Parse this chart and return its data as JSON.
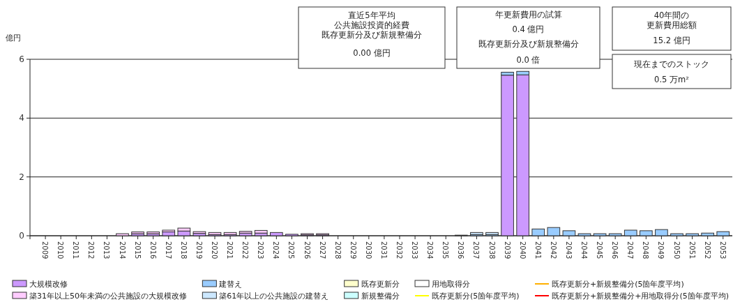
{
  "chart_data": {
    "type": "bar",
    "stacked": true,
    "ylabel": "億円",
    "categories": [
      "2009",
      "2010",
      "2011",
      "2012",
      "2013",
      "2014",
      "2015",
      "2016",
      "2017",
      "2018",
      "2019",
      "2020",
      "2021",
      "2022",
      "2023",
      "2024",
      "2025",
      "2026",
      "2027",
      "2028",
      "2029",
      "2030",
      "2031",
      "2032",
      "2033",
      "2034",
      "2035",
      "2036",
      "2037",
      "2038",
      "2039",
      "2040",
      "2041",
      "2042",
      "2043",
      "2044",
      "2045",
      "2046",
      "2047",
      "2048",
      "2049",
      "2050",
      "2051",
      "2052",
      "2053"
    ],
    "series": [
      {
        "name": "大規模改修",
        "color": "#cc99ff",
        "values": [
          0,
          0,
          0,
          0,
          0,
          0,
          0.07,
          0.07,
          0.13,
          0.16,
          0.08,
          0.04,
          0.04,
          0.09,
          0.09,
          0.11,
          0.05,
          0.03,
          0.03,
          0,
          0,
          0,
          0,
          0,
          0,
          0,
          0,
          0,
          0,
          0,
          5.46,
          5.47,
          0,
          0,
          0,
          0,
          0,
          0,
          0,
          0,
          0,
          0,
          0,
          0,
          0
        ]
      },
      {
        "name": "築31年以上50年未満の公共施設の大規模改修",
        "color": "#ffccff",
        "values": [
          0,
          0,
          0,
          0,
          0,
          0.07,
          0.06,
          0.06,
          0.06,
          0.1,
          0.06,
          0.07,
          0.07,
          0.06,
          0.09,
          0,
          0,
          0.04,
          0.04,
          0,
          0,
          0,
          0,
          0,
          0,
          0,
          0,
          0,
          0,
          0,
          0,
          0,
          0,
          0,
          0,
          0,
          0,
          0,
          0,
          0,
          0,
          0,
          0,
          0,
          0
        ]
      },
      {
        "name": "建替え",
        "color": "#99ccff",
        "values": [
          0,
          0,
          0,
          0,
          0,
          0,
          0,
          0,
          0,
          0,
          0,
          0,
          0,
          0,
          0,
          0,
          0,
          0,
          0,
          0,
          0,
          0,
          0,
          0,
          0,
          0,
          0,
          0.02,
          0.04,
          0.04,
          0.1,
          0.12,
          0.23,
          0.28,
          0.17,
          0.07,
          0.07,
          0.07,
          0.19,
          0.17,
          0.21,
          0.07,
          0.07,
          0.09,
          0.14
        ]
      },
      {
        "name": "築61年以上の公共施設の建替え",
        "color": "#cce8ff",
        "values": [
          0,
          0,
          0,
          0,
          0,
          0,
          0,
          0,
          0,
          0,
          0,
          0,
          0,
          0,
          0,
          0,
          0,
          0,
          0,
          0,
          0,
          0,
          0,
          0,
          0,
          0,
          0,
          0,
          0.07,
          0.07,
          0,
          0,
          0,
          0,
          0,
          0,
          0,
          0,
          0,
          0,
          0,
          0,
          0,
          0,
          0
        ]
      },
      {
        "name": "既存更新分",
        "color": "#ffffcc",
        "values": [
          0,
          0,
          0,
          0,
          0,
          0,
          0,
          0,
          0,
          0,
          0,
          0,
          0,
          0,
          0,
          0,
          0,
          0,
          0,
          0,
          0,
          0,
          0,
          0,
          0,
          0,
          0,
          0,
          0,
          0,
          0,
          0,
          0,
          0,
          0,
          0,
          0,
          0,
          0,
          0,
          0,
          0,
          0,
          0,
          0
        ]
      },
      {
        "name": "新規整備分",
        "color": "#ccffff",
        "values": [
          0,
          0,
          0,
          0,
          0,
          0,
          0,
          0,
          0,
          0,
          0,
          0,
          0,
          0,
          0,
          0,
          0,
          0,
          0,
          0,
          0,
          0,
          0,
          0,
          0,
          0,
          0,
          0,
          0,
          0,
          0,
          0,
          0,
          0,
          0,
          0,
          0,
          0,
          0,
          0,
          0,
          0,
          0,
          0,
          0
        ]
      },
      {
        "name": "用地取得分",
        "color": "#ffffff",
        "values": [
          0,
          0,
          0,
          0,
          0,
          0,
          0,
          0,
          0,
          0,
          0,
          0,
          0,
          0,
          0,
          0,
          0,
          0,
          0,
          0,
          0,
          0,
          0,
          0,
          0,
          0,
          0,
          0,
          0,
          0,
          0,
          0,
          0,
          0,
          0,
          0,
          0,
          0,
          0,
          0,
          0,
          0,
          0,
          0,
          0
        ]
      },
      {
        "name": "既存更新分(5箇年度平均)",
        "type": "line",
        "color": "#ffff00",
        "values": [
          null,
          null,
          null,
          null,
          null,
          null,
          null,
          null,
          null,
          null,
          null,
          null,
          null,
          null,
          null,
          null,
          null,
          null,
          null,
          null,
          null,
          null,
          null,
          null,
          null,
          null,
          null,
          null,
          null,
          null,
          null,
          null,
          null,
          null,
          null,
          null,
          null,
          null,
          null,
          null,
          null,
          null,
          null,
          null,
          null
        ]
      },
      {
        "name": "既存更新分+新規整備分(5箇年度平均)",
        "type": "line",
        "color": "#ffb000",
        "values": [
          null,
          null,
          null,
          null,
          null,
          null,
          null,
          null,
          null,
          null,
          null,
          null,
          null,
          null,
          null,
          null,
          null,
          null,
          null,
          null,
          null,
          null,
          null,
          null,
          null,
          null,
          null,
          null,
          null,
          null,
          null,
          null,
          null,
          null,
          null,
          null,
          null,
          null,
          null,
          null,
          null,
          null,
          null,
          null,
          null
        ]
      },
      {
        "name": "既存更新分+新規整備分+用地取得分(5箇年度平均)",
        "type": "line",
        "color": "#ff0000",
        "values": [
          null,
          null,
          null,
          null,
          null,
          null,
          null,
          null,
          null,
          null,
          null,
          null,
          null,
          null,
          null,
          null,
          null,
          null,
          null,
          null,
          null,
          null,
          null,
          null,
          null,
          null,
          null,
          null,
          null,
          null,
          null,
          null,
          null,
          null,
          null,
          null,
          null,
          null,
          null,
          null,
          null,
          null,
          null,
          null,
          null
        ]
      }
    ],
    "ylim": [
      0,
      6
    ],
    "yticks": [
      0,
      2,
      4,
      6
    ],
    "grid": "y",
    "legend": "bottom",
    "annotations": [
      "直近5年平均",
      "公共施設投資的経費",
      "既存更新分及び新規整備分",
      "0.00 億円",
      "年更新費用の試算",
      "0.4 億円",
      "既存更新分及び新規整備分",
      "0.0 倍",
      "40年間の",
      "更新費用総額",
      "15.2 億円",
      "現在までのストック",
      "0.5 万m²"
    ]
  }
}
